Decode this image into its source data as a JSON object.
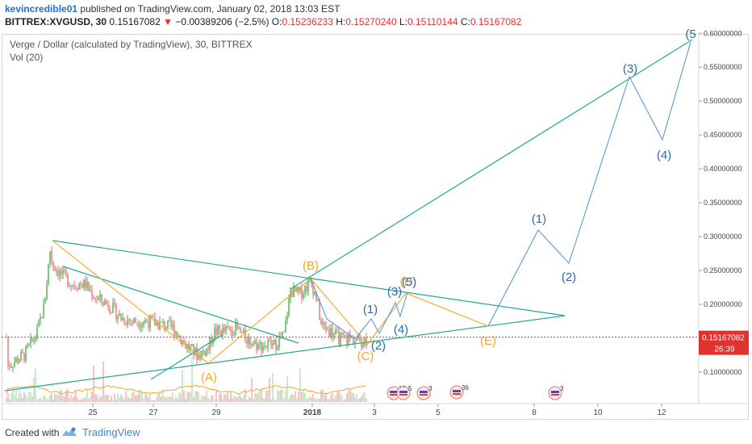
{
  "header": {
    "author": "kevincredible01",
    "published": "published on TradingView.com, January 02, 2018 13:03 EST",
    "symbol": "BITTREX:XVGUSD, 30",
    "last": "0.15167082",
    "change_arrow": "▼",
    "change": "−0.00389206 (−2.5%)",
    "o_label": "O:",
    "o_value": "0.15236233",
    "h_label": "H:",
    "h_value": "0.15270240",
    "l_label": "L:",
    "l_value": "0.15110144",
    "c_label": "C:",
    "c_value": "0.15167082"
  },
  "chart_title": "Verge / Dollar (calculated by TradingView), 30, BITTREX",
  "volume_label": "Vol (20)",
  "footer": {
    "created": "Created with",
    "brand": "TradingView"
  },
  "colors": {
    "candle_up": "#4caf50",
    "candle_down": "#e57373",
    "wave_orange": "#f5a623",
    "wave_blue": "#5b9bd5",
    "trendline_green": "#26a69a",
    "price_line": "#e0322f"
  },
  "chart_data": {
    "type": "candlestick",
    "x_ticks": [
      "25",
      "27",
      "29",
      "2018",
      "3",
      "5",
      "8",
      "10",
      "12"
    ],
    "y_ticks": [
      "0.60000000",
      "0.55000000",
      "0.50000000",
      "0.45000000",
      "0.40000000",
      "0.35000000",
      "0.30000000",
      "0.25000000",
      "0.20000000",
      "0.10000000"
    ],
    "ylim": [
      0.04,
      0.61
    ],
    "current_price": {
      "value": 0.15167082,
      "label": "0.15167082",
      "countdown": "26:39"
    },
    "orange_labels": [
      "(A)",
      "(B)",
      "(C)",
      "(E)",
      "(D)"
    ],
    "blue_labels": [
      "(1)",
      "(2)",
      "(3)",
      "(4)",
      "(5)",
      "(1)",
      "(2)",
      "(3)",
      "(4)",
      "(5"
    ],
    "event_markers": [
      "15",
      "5",
      "3",
      "36",
      "3"
    ]
  }
}
